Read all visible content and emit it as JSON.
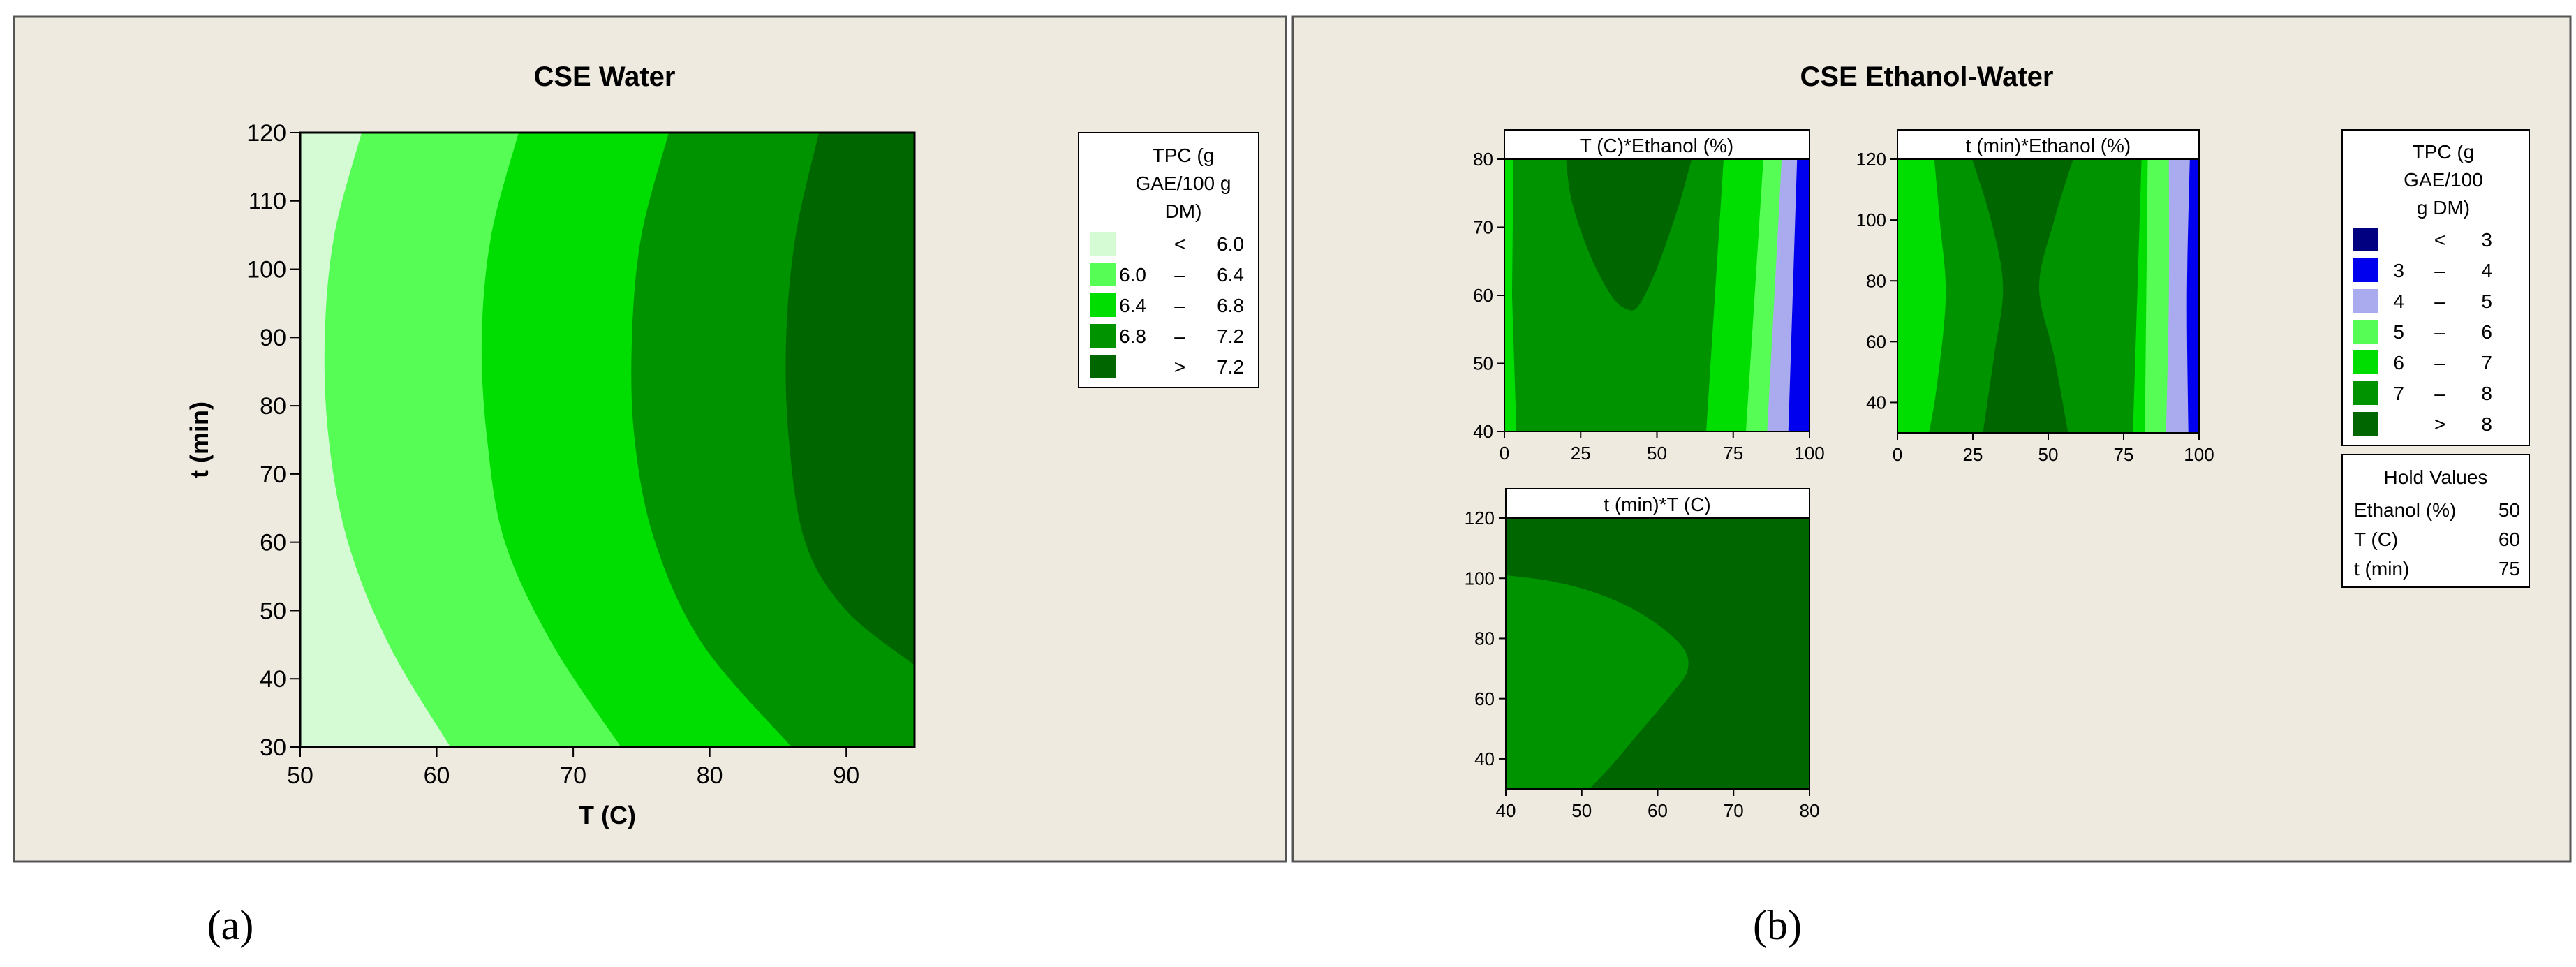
{
  "figure": {
    "panel_a": {
      "caption": "(a)",
      "title": "CSE Water"
    },
    "panel_b": {
      "caption": "(b)",
      "title": "CSE Ethanol-Water"
    }
  },
  "colors": {
    "panel_bg": "#eeeae0",
    "frame": "#555555",
    "plot_border": "#000000",
    "c_lt6": "#d5fbd5",
    "c_6_64": "#55fd55",
    "c_64_68": "#00dd00",
    "c_68_72": "#009300",
    "c_gt72": "#006600",
    "e_lt3": "#000080",
    "e_3_4": "#0000ee",
    "e_4_5": "#aaaaee",
    "e_5_6": "#55fd55",
    "e_6_7": "#00dd00",
    "e_7_8": "#009300",
    "e_gt8": "#006600"
  },
  "chart_data": [
    {
      "type": "contour",
      "title": "CSE Water",
      "xlabel": "T (C)",
      "ylabel": "t (min)",
      "xlim": [
        50,
        95
      ],
      "ylim": [
        30,
        120
      ],
      "x_ticks": [
        50,
        60,
        70,
        80,
        90
      ],
      "y_ticks": [
        30,
        40,
        50,
        60,
        70,
        80,
        90,
        100,
        110,
        120
      ],
      "legend": {
        "title_lines": [
          "TPC (g",
          "GAE/100 g",
          "DM)"
        ],
        "position": "right",
        "entries": [
          {
            "lo": "<",
            "hi": "6.0",
            "color": "#d5fbd5"
          },
          {
            "lo": "6.0",
            "dash": "–",
            "hi": "6.4",
            "color": "#55fd55"
          },
          {
            "lo": "6.4",
            "dash": "–",
            "hi": "6.8",
            "color": "#00dd00"
          },
          {
            "lo": "6.8",
            "dash": "–",
            "hi": "7.2",
            "color": "#009300"
          },
          {
            "lo": ">",
            "hi": "7.2",
            "color": "#006600"
          }
        ]
      },
      "contour_lines": [
        {
          "level": 6.0,
          "points": [
            [
              54.5,
              120
            ],
            [
              52.5,
              105
            ],
            [
              51.8,
              90
            ],
            [
              52.1,
              75
            ],
            [
              53.5,
              60
            ],
            [
              56.5,
              45
            ],
            [
              61,
              30
            ]
          ]
        },
        {
          "level": 6.4,
          "points": [
            [
              66,
              120
            ],
            [
              64,
              105
            ],
            [
              63.3,
              90
            ],
            [
              63.7,
              75
            ],
            [
              65,
              60
            ],
            [
              68.5,
              45
            ],
            [
              73.5,
              30
            ]
          ]
        },
        {
          "level": 6.8,
          "points": [
            [
              77,
              120
            ],
            [
              75,
              105
            ],
            [
              74.3,
              90
            ],
            [
              74.5,
              75
            ],
            [
              76,
              60
            ],
            [
              79.5,
              45
            ],
            [
              86,
              30
            ]
          ]
        },
        {
          "level": 7.2,
          "points": [
            [
              88,
              120
            ],
            [
              86.3,
              105
            ],
            [
              85.6,
              90
            ],
            [
              85.8,
              75
            ],
            [
              87,
              60
            ],
            [
              90,
              50
            ],
            [
              95,
              42
            ]
          ]
        }
      ]
    },
    {
      "type": "contour",
      "subtitle": "T (C)*Ethanol (%)",
      "xlim": [
        0,
        100
      ],
      "ylim": [
        40,
        80
      ],
      "x_ticks": [
        0,
        25,
        50,
        75,
        100
      ],
      "y_ticks": [
        40,
        50,
        60,
        70,
        80
      ],
      "regions_x_left_to_right": [
        {
          "x": 0,
          "level": "6 - 7"
        },
        {
          "x": 3,
          "level": "7 - 8"
        },
        {
          "x": 20,
          "level": "> 8 (pocket, T above ~58)"
        },
        {
          "x": 65,
          "level": "7 - 8"
        },
        {
          "x": 85,
          "level": "6 - 7"
        },
        {
          "x": 88,
          "level": "5 - 6"
        },
        {
          "x": 92,
          "level": "4 - 5"
        },
        {
          "x": 96,
          "level": "3 - 4"
        }
      ]
    },
    {
      "type": "contour",
      "subtitle": "t (min)*Ethanol (%)",
      "xlim": [
        0,
        100
      ],
      "ylim": [
        30,
        120
      ],
      "x_ticks": [
        0,
        25,
        50,
        75,
        100
      ],
      "y_ticks": [
        40,
        60,
        80,
        100,
        120
      ],
      "regions_x_left_to_right": [
        {
          "x": 0,
          "level": "6 - 7"
        },
        {
          "x": 12,
          "level": "7 - 8"
        },
        {
          "x": 30,
          "level": "> 8"
        },
        {
          "x": 58,
          "level": "7 - 8"
        },
        {
          "x": 80,
          "level": "6 - 7"
        },
        {
          "x": 83,
          "level": "5 - 6"
        },
        {
          "x": 90,
          "level": "4 - 5"
        },
        {
          "x": 97,
          "level": "3 - 4"
        }
      ]
    },
    {
      "type": "contour",
      "subtitle": "t (min)*T (C)",
      "xlim": [
        40,
        80
      ],
      "ylim": [
        30,
        120
      ],
      "x_ticks": [
        40,
        50,
        60,
        70,
        80
      ],
      "y_ticks": [
        40,
        60,
        80,
        100,
        120
      ],
      "regions": [
        {
          "level": "7 - 8",
          "boundary": [
            [
              40,
              101
            ],
            [
              46,
              99
            ],
            [
              52,
              95
            ],
            [
              58,
              88
            ],
            [
              63,
              78
            ],
            [
              64,
              70
            ],
            [
              62,
              62
            ],
            [
              58,
              50
            ],
            [
              54,
              38
            ],
            [
              51,
              30
            ]
          ]
        },
        {
          "level": "> 8",
          "description": "rest of plot area"
        }
      ]
    }
  ],
  "legend_b": {
    "title_lines": [
      "TPC (g",
      "GAE/100",
      "g DM)"
    ],
    "entries": [
      {
        "lo": "<",
        "hi": "3",
        "color": "#000080"
      },
      {
        "lo": "3",
        "dash": "–",
        "hi": "4",
        "color": "#0000ee"
      },
      {
        "lo": "4",
        "dash": "–",
        "hi": "5",
        "color": "#aaaaee"
      },
      {
        "lo": "5",
        "dash": "–",
        "hi": "6",
        "color": "#55fd55"
      },
      {
        "lo": "6",
        "dash": "–",
        "hi": "7",
        "color": "#00dd00"
      },
      {
        "lo": "7",
        "dash": "–",
        "hi": "8",
        "color": "#009300"
      },
      {
        "lo": ">",
        "hi": "8",
        "color": "#006600"
      }
    ]
  },
  "hold_values": {
    "title": "Hold Values",
    "rows": [
      {
        "name": "Ethanol (%)",
        "value": "50"
      },
      {
        "name": "T (C)",
        "value": "60"
      },
      {
        "name": "t (min)",
        "value": "75"
      }
    ]
  }
}
